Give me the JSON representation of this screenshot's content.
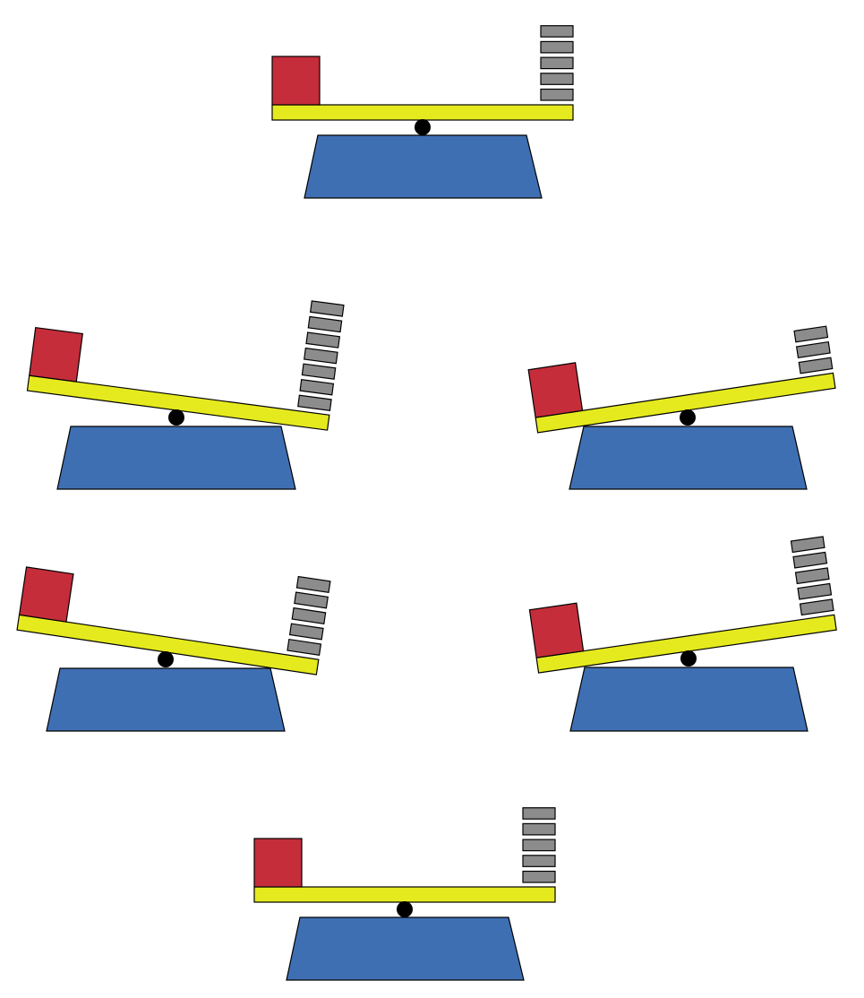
{
  "colors": {
    "base": "#3f6fb3",
    "beam": "#e5ea1f",
    "box": "#c52d3b",
    "weight": "#8c8c8c",
    "pivot": "#000000",
    "stroke": "#000000",
    "background": "#ffffff"
  },
  "balances": [
    {
      "id": "balance-1",
      "tilt": "level",
      "box_side": "left",
      "weight_count": 5
    },
    {
      "id": "balance-2",
      "tilt": "right-side-down",
      "box_side": "left",
      "weight_count": 7
    },
    {
      "id": "balance-3",
      "tilt": "left-side-down",
      "box_side": "left",
      "weight_count": 3
    },
    {
      "id": "balance-4",
      "tilt": "right-side-down",
      "box_side": "left",
      "weight_count": 5
    },
    {
      "id": "balance-5",
      "tilt": "left-side-down",
      "box_side": "left",
      "weight_count": 5
    },
    {
      "id": "balance-6",
      "tilt": "level",
      "box_side": "left",
      "weight_count": 5
    }
  ]
}
